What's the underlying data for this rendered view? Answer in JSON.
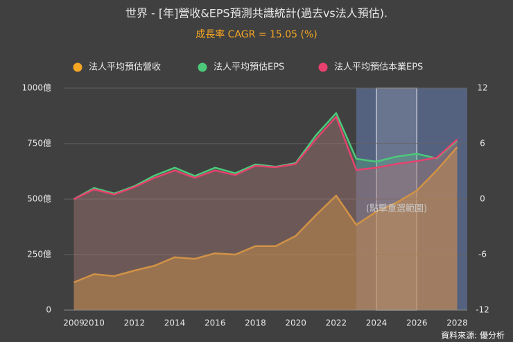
{
  "chart_data": {
    "type": "line",
    "title": "世界 - [年]營收&EPS預測共識統計(過去vs法人預估).",
    "subtitle": "成長率 CAGR = 15.05 (%)",
    "annotation": "(點擊重選範圍)",
    "source": "資料來源: 優分析",
    "x": [
      2009,
      2010,
      2011,
      2012,
      2013,
      2014,
      2015,
      2016,
      2017,
      2018,
      2019,
      2020,
      2021,
      2022,
      2023,
      2024,
      2025,
      2026,
      2027,
      2028
    ],
    "series": [
      {
        "name": "法人平均預估營收",
        "color": "#f5a623",
        "values": [
          125,
          162,
          153,
          178,
          200,
          238,
          231,
          256,
          250,
          288,
          288,
          334,
          428,
          516,
          384,
          444,
          484,
          538,
          631,
          734
        ]
      },
      {
        "name": "法人平均預估EPS",
        "color": "#4cc97a",
        "axis": "y2",
        "values": [
          0,
          1.2,
          0.6,
          1.4,
          2.55,
          3.4,
          2.5,
          3.4,
          2.8,
          3.75,
          3.5,
          3.9,
          6.9,
          9.3,
          4.35,
          4.05,
          4.6,
          4.9,
          4.4,
          6.3
        ]
      },
      {
        "name": "法人平均預估本業EPS",
        "color": "#e8416f",
        "axis": "y2",
        "values": [
          0,
          1.05,
          0.5,
          1.3,
          2.3,
          3.1,
          2.3,
          3.1,
          2.6,
          3.6,
          3.45,
          3.8,
          6.5,
          8.9,
          3.15,
          3.4,
          3.8,
          4.1,
          4.5,
          6.45
        ]
      }
    ],
    "xlim": [
      2008.5,
      2028.5
    ],
    "xticks": [
      2009,
      2010,
      2012,
      2014,
      2016,
      2018,
      2020,
      2022,
      2024,
      2026,
      2028
    ],
    "ylim": [
      0,
      1000
    ],
    "yticks": [
      0,
      {
        "value": 250,
        "label": "250億"
      },
      {
        "value": 500,
        "label": "500億"
      },
      {
        "value": 750,
        "label": "750億"
      },
      {
        "value": 1000,
        "label": "1000億"
      }
    ],
    "y2lim": [
      -12,
      12
    ],
    "y2ticks": [
      -12,
      -6,
      0,
      6,
      12
    ],
    "shaded_range": [
      2023,
      2028.5
    ],
    "highlight_range": [
      2024,
      2026
    ],
    "grid": true
  }
}
